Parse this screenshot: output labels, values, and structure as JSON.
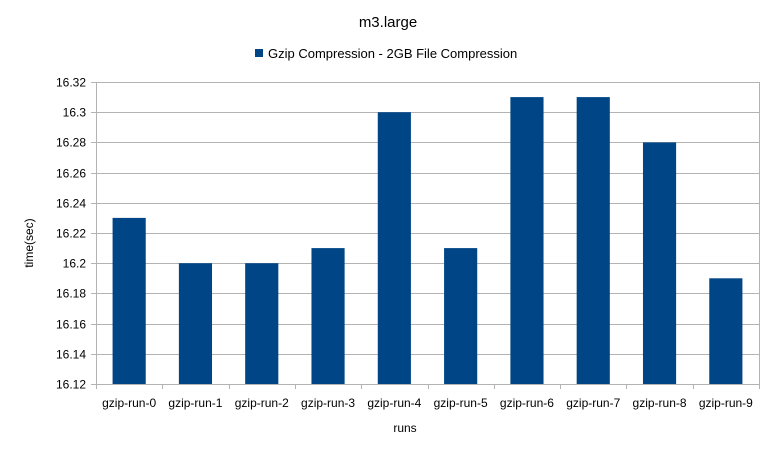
{
  "chart_data": {
    "type": "bar",
    "title": "m3.large",
    "xlabel": "runs",
    "ylabel": "time(sec)",
    "categories": [
      "gzip-run-0",
      "gzip-run-1",
      "gzip-run-2",
      "gzip-run-3",
      "gzip-run-4",
      "gzip-run-5",
      "gzip-run-6",
      "gzip-run-7",
      "gzip-run-8",
      "gzip-run-9"
    ],
    "series": [
      {
        "name": "Gzip Compression - 2GB File Compression",
        "color": "#004586",
        "values": [
          16.23,
          16.2,
          16.2,
          16.21,
          16.3,
          16.21,
          16.31,
          16.31,
          16.28,
          16.19
        ]
      }
    ],
    "ylim": [
      16.12,
      16.32
    ],
    "yticks": [
      "16.12",
      "16.14",
      "16.16",
      "16.18",
      "16.2",
      "16.22",
      "16.24",
      "16.26",
      "16.28",
      "16.3",
      "16.32"
    ],
    "grid": true,
    "legend_position": "top-center"
  }
}
